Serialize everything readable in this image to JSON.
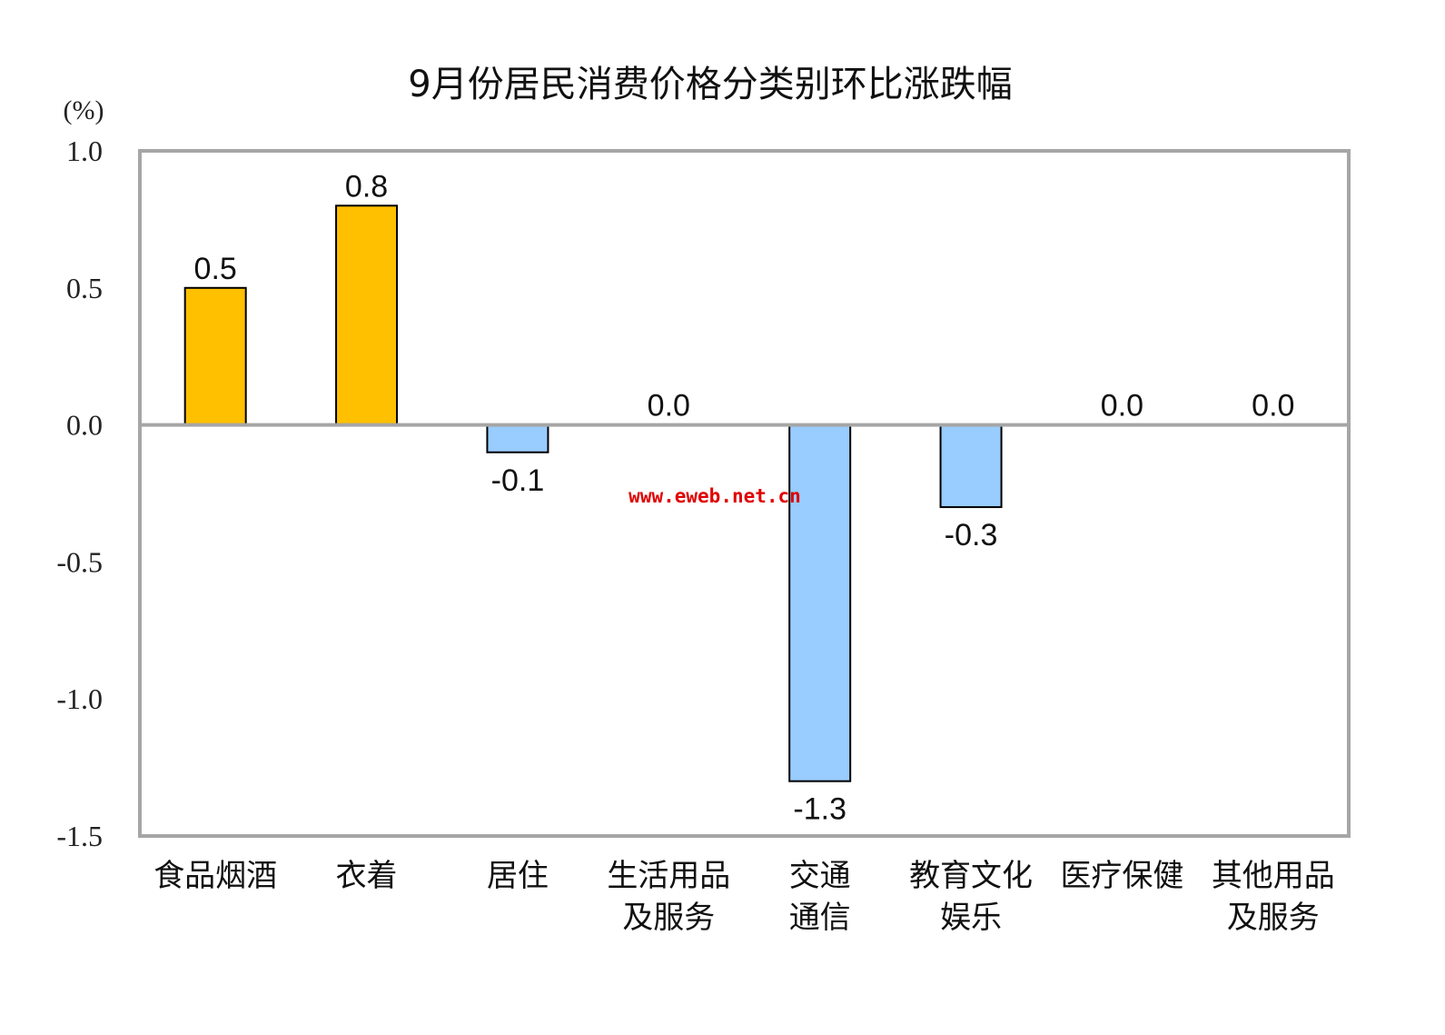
{
  "chart_data": {
    "type": "bar",
    "title": "9月份居民消费价格分类别环比涨跌幅",
    "unit": "(%)",
    "ylim": [
      -1.5,
      1.0
    ],
    "yticks": [
      "1.0",
      "0.5",
      "0.0",
      "-0.5",
      "-1.0",
      "-1.5"
    ],
    "grid": false,
    "categories": [
      [
        "食品烟酒"
      ],
      [
        "衣着"
      ],
      [
        "居住"
      ],
      [
        "生活用品",
        "及服务"
      ],
      [
        "交通",
        "通信"
      ],
      [
        "教育文化",
        "娱乐"
      ],
      [
        "医疗保健"
      ],
      [
        "其他用品",
        "及服务"
      ]
    ],
    "values": [
      0.5,
      0.8,
      -0.1,
      0.0,
      -1.3,
      -0.3,
      0.0,
      0.0
    ],
    "value_labels": [
      "0.5",
      "0.8",
      "-0.1",
      "0.0",
      "-1.3",
      "-0.3",
      "0.0",
      "0.0"
    ],
    "colors": {
      "positive": "#FFC000",
      "negative": "#99CCFF",
      "frame": "#A6A6A6",
      "zero_line": "#A6A6A6",
      "bar_border": "#000000"
    }
  },
  "watermark": "www.eweb.net.cn"
}
